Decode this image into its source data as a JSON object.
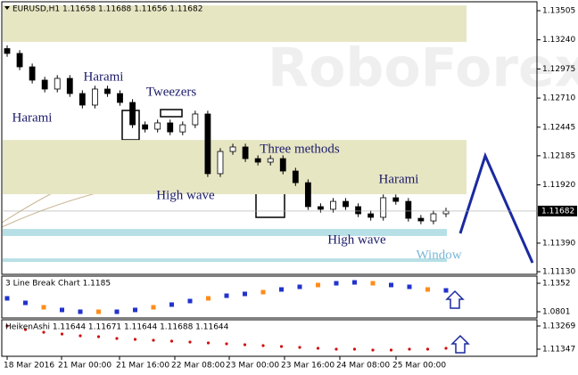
{
  "time_axis": {
    "labels": [
      "18 Mar 2016",
      "21 Mar 00:00",
      "21 Mar 16:00",
      "22 Mar 08:00",
      "23 Mar 00:00",
      "23 Mar 16:00",
      "24 Mar 08:00",
      "25 Mar 00:00"
    ]
  },
  "chart_data": [
    {
      "type": "candlestick",
      "title": "EURUSD,H1  1.11658 1.11688 1.11656 1.11682",
      "open": [
        1.1316,
        1.13116,
        1.12994,
        1.12873,
        1.12792,
        1.12889,
        1.12751,
        1.12646,
        1.12792,
        1.12751,
        1.1267,
        1.12467,
        1.12427,
        1.12484,
        1.12402,
        1.12467,
        1.12565,
        1.12022,
        1.12224,
        1.12265,
        1.12159,
        1.12127,
        1.12159,
        1.12046,
        1.1194,
        1.11722,
        1.11698,
        1.1177,
        1.11722,
        1.11657,
        1.11625,
        1.11803,
        1.1177,
        1.11616,
        1.11592,
        1.11657
      ],
      "high": [
        1.1319,
        1.13146,
        1.13024,
        1.12903,
        1.12919,
        1.12919,
        1.12781,
        1.12822,
        1.12822,
        1.12781,
        1.127,
        1.12497,
        1.12514,
        1.12514,
        1.12497,
        1.12595,
        1.12595,
        1.12254,
        1.12295,
        1.12295,
        1.12189,
        1.12189,
        1.12189,
        1.12076,
        1.1197,
        1.11752,
        1.118,
        1.118,
        1.11752,
        1.11687,
        1.11833,
        1.11833,
        1.118,
        1.11646,
        1.11687,
        1.11712
      ],
      "low": [
        1.13086,
        1.12964,
        1.12843,
        1.12762,
        1.12762,
        1.12721,
        1.12616,
        1.12616,
        1.12721,
        1.1264,
        1.12437,
        1.12397,
        1.12397,
        1.12372,
        1.12372,
        1.12437,
        1.11992,
        1.11992,
        1.12194,
        1.12129,
        1.12097,
        1.12097,
        1.12016,
        1.1191,
        1.11692,
        1.11668,
        1.11668,
        1.11692,
        1.11627,
        1.11595,
        1.11595,
        1.1174,
        1.11586,
        1.11562,
        1.11562,
        1.11627
      ],
      "close": [
        1.13116,
        1.12994,
        1.12873,
        1.12792,
        1.12889,
        1.12751,
        1.12646,
        1.12792,
        1.12751,
        1.1267,
        1.12467,
        1.12427,
        1.12484,
        1.12402,
        1.12467,
        1.12565,
        1.12022,
        1.12224,
        1.12265,
        1.12159,
        1.12127,
        1.12159,
        1.12046,
        1.1194,
        1.11722,
        1.11698,
        1.1177,
        1.11722,
        1.11657,
        1.11625,
        1.11803,
        1.1177,
        1.11616,
        1.11592,
        1.11657,
        1.11682
      ],
      "ylim": [
        1.11106,
        1.13586
      ],
      "yticks": [
        1.13505,
        {
          "value": 1.1324,
          "label": "1.13240"
        },
        1.12975,
        {
          "value": 1.1271,
          "label": "1.12710"
        },
        1.12445,
        1.12185,
        {
          "value": 1.1192,
          "label": "1.11920"
        },
        {
          "value": 1.1139,
          "label": "1.11390"
        },
        {
          "value": 1.1113,
          "label": "1.11130"
        }
      ],
      "current_price": 1.11682,
      "zones": [
        {
          "low": 1.13221,
          "high": 1.13553,
          "color": "#e7e6c3"
        },
        {
          "low": 1.11835,
          "high": 1.12329,
          "color": "#e7e6c3"
        },
        {
          "low": 1.11455,
          "high": 1.11519,
          "color": "#b7dfe6"
        },
        {
          "low": 1.11219,
          "high": 1.11251,
          "color": "#b7dfe6"
        }
      ],
      "annotations": [
        "Harami",
        "Harami",
        "Tweezers",
        "Three methods",
        "High wave",
        "Harami",
        "High wave",
        "Window"
      ]
    },
    {
      "type": "scatter",
      "title": "3 Line Break Chart 1.1185",
      "color": "#2233cc",
      "values": [
        1.106,
        1.0973,
        1.0887,
        1.0836,
        1.0801,
        1.0801,
        1.0801,
        1.0836,
        1.0887,
        1.0939,
        1.1008,
        1.106,
        1.1111,
        1.1146,
        1.118,
        1.1232,
        1.1283,
        1.1318,
        1.1352,
        1.1369,
        1.1352,
        1.1318,
        1.1283,
        1.1232,
        1.1214
      ],
      "ylim": [
        1.068,
        1.149
      ],
      "yticks": [
        1.1352,
        1.0801
      ]
    },
    {
      "type": "scatter",
      "title": "HeikenAshi 1.11644 1.11671 1.11644 1.11688 1.11644",
      "color": "#d01010",
      "values": [
        1.13269,
        1.12973,
        1.12751,
        1.12604,
        1.12456,
        1.12382,
        1.12234,
        1.1216,
        1.12086,
        1.12012,
        1.11939,
        1.11865,
        1.11791,
        1.11717,
        1.11643,
        1.11569,
        1.11495,
        1.11421,
        1.11347,
        1.11347,
        1.11273,
        1.11273,
        1.11347,
        1.11347,
        1.11421
      ],
      "ylim": [
        1.10756,
        1.13786
      ],
      "yticks": [
        1.13269,
        1.11347
      ]
    }
  ]
}
